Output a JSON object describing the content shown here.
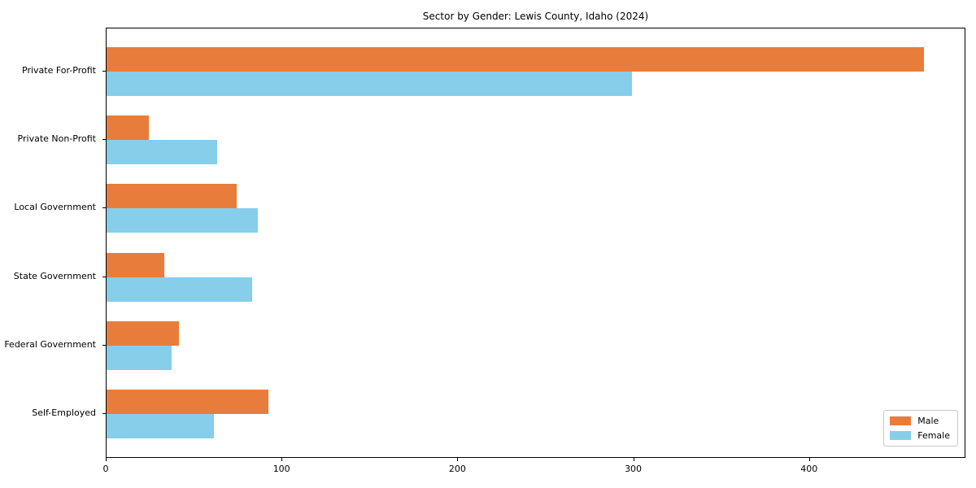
{
  "title": "Sector by Gender: Lewis County, Idaho (2024)",
  "colors": {
    "male": "#e87d3b",
    "female": "#87ceeb",
    "spine": "#000000",
    "background": "#ffffff",
    "legend_border": "#c9c9c9"
  },
  "chart_data": {
    "type": "bar",
    "orientation": "horizontal",
    "title": "Sector by Gender: Lewis County, Idaho (2024)",
    "xlabel": "",
    "ylabel": "",
    "categories": [
      "Private For-Profit",
      "Private Non-Profit",
      "Local Government",
      "State Government",
      "Federal Government",
      "Self-Employed"
    ],
    "series": [
      {
        "name": "Male",
        "color": "#e87d3b",
        "values": [
          465,
          24,
          74,
          33,
          41,
          92
        ]
      },
      {
        "name": "Female",
        "color": "#87ceeb",
        "values": [
          299,
          63,
          86,
          83,
          37,
          61
        ]
      }
    ],
    "xlim": [
      0,
      488
    ],
    "xticks": [
      0,
      100,
      200,
      300,
      400
    ],
    "grid": false,
    "legend_position": "lower right"
  },
  "legend": {
    "items": [
      {
        "label": "Male"
      },
      {
        "label": "Female"
      }
    ]
  }
}
